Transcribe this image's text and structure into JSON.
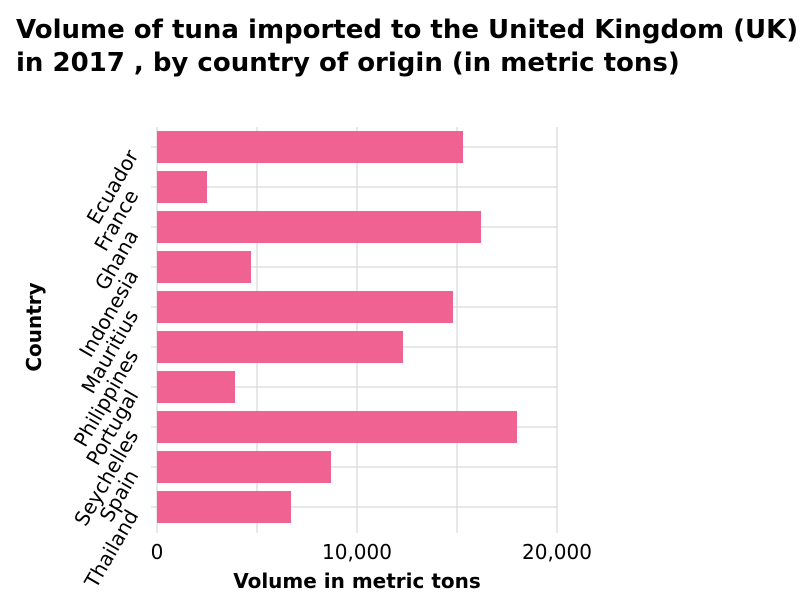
{
  "chart_data": {
    "type": "bar",
    "orientation": "horizontal",
    "title": "Volume of tuna imported to the United Kingdom (UK) in 2017 , by country of origin (in metric tons)",
    "xlabel": "Volume in metric tons",
    "ylabel": "Country",
    "categories": [
      "Ecuador",
      "France",
      "Ghana",
      "Indonesia",
      "Mauritius",
      "Philippines",
      "Portugal",
      "Seychelles",
      "Spain",
      "Thailand"
    ],
    "values": [
      15300,
      2500,
      16200,
      4700,
      14800,
      12300,
      3900,
      18000,
      8700,
      6700
    ],
    "xlim": [
      0,
      20000
    ],
    "xticks": [
      0,
      10000,
      20000
    ],
    "xtick_labels": [
      "0",
      "10,000",
      "20,000"
    ],
    "grid": true,
    "bar_color": "#f06292"
  }
}
